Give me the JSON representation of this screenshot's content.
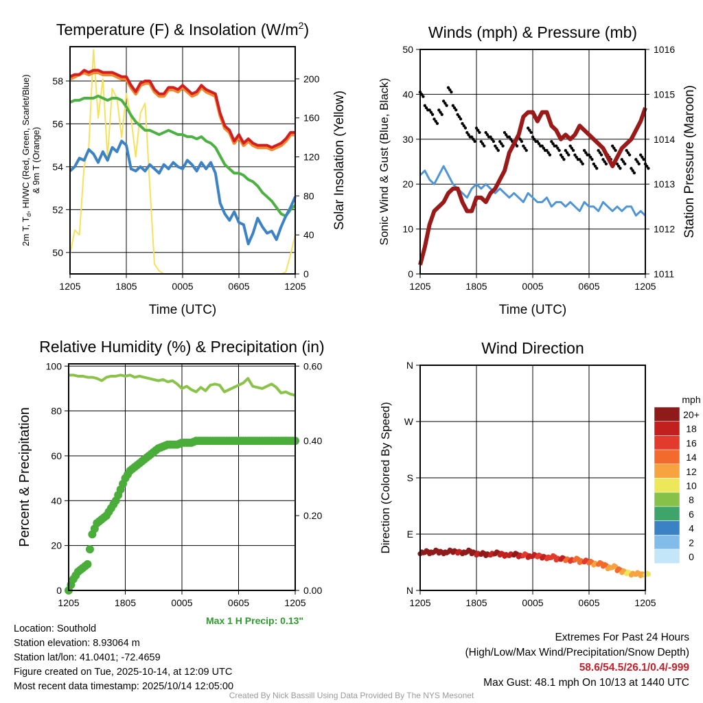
{
  "chart_data": [
    {
      "id": "temp",
      "type": "line",
      "title": "Temperature (F) & Insolation (W/m",
      "title_sup": "2",
      "title_close": ")",
      "xlabel": "Time (UTC)",
      "ylabel": "2m T, T",
      "ylabel_sub": "d",
      "ylabel_rest": ", HI/WC (Red, Green, Scarlet/Blue)",
      "ylabel2": "& 9m T (Orange)",
      "y2label": "Solar Insolation (Yellow)",
      "x_ticks": [
        "1205",
        "1805",
        "0005",
        "0605",
        "1205"
      ],
      "ylim": [
        49,
        59.6
      ],
      "y_ticks": [
        50,
        52,
        54,
        56,
        58
      ],
      "y2lim": [
        0,
        233
      ],
      "y2_ticks": [
        0,
        40,
        80,
        120,
        160,
        200
      ],
      "series": [
        {
          "name": "Solar",
          "axis": "y2",
          "color": "#f7e15a",
          "width": 2,
          "values": [
            20,
            45,
            40,
            110,
            130,
            230,
            160,
            200,
            120,
            190,
            180,
            140,
            185,
            160,
            120,
            165,
            175,
            90,
            10,
            3,
            0,
            0,
            0,
            0,
            0,
            0,
            0,
            0,
            0,
            0,
            0,
            0,
            0,
            0,
            0,
            0,
            0,
            0,
            0,
            0,
            0,
            0,
            0,
            0,
            0,
            0,
            2,
            20,
            40
          ]
        },
        {
          "name": "9m T",
          "axis": "y",
          "color": "#f08a30",
          "width": 5,
          "values": [
            58.1,
            58.2,
            58.3,
            58.4,
            58.3,
            58.4,
            58.4,
            58.3,
            58.3,
            58.3,
            58.2,
            58.1,
            58.1,
            57.7,
            57.4,
            57.8,
            57.9,
            57.9,
            57.5,
            57.3,
            57.3,
            57.6,
            57.6,
            57.5,
            57.7,
            57.5,
            57.3,
            57.4,
            57.7,
            57.5,
            57.4,
            57.3,
            56.4,
            55.8,
            55.6,
            55.1,
            55.4,
            55.0,
            55.2,
            55.0,
            54.9,
            54.9,
            54.9,
            54.8,
            54.9,
            55.0,
            55.2,
            55.5,
            55.5
          ]
        },
        {
          "name": "2m T",
          "axis": "y",
          "color": "#d11f1f",
          "width": 4,
          "values": [
            58.2,
            58.3,
            58.3,
            58.5,
            58.4,
            58.5,
            58.5,
            58.4,
            58.4,
            58.4,
            58.3,
            58.2,
            58.2,
            57.8,
            57.5,
            57.9,
            58.0,
            58.0,
            57.6,
            57.4,
            57.4,
            57.7,
            57.7,
            57.6,
            57.8,
            57.6,
            57.4,
            57.5,
            57.8,
            57.6,
            57.5,
            57.4,
            56.5,
            55.9,
            55.7,
            55.2,
            55.5,
            55.1,
            55.3,
            55.1,
            55.0,
            55.0,
            55.0,
            54.9,
            55.0,
            55.1,
            55.3,
            55.6,
            55.6
          ]
        },
        {
          "name": "Td",
          "axis": "y",
          "color": "#4db043",
          "width": 4,
          "values": [
            57.0,
            57.1,
            57.1,
            57.2,
            57.2,
            57.2,
            57.3,
            57.2,
            57.1,
            57.2,
            57.2,
            57.1,
            56.8,
            56.4,
            56.1,
            55.9,
            55.7,
            55.7,
            55.6,
            55.5,
            55.6,
            55.7,
            55.6,
            55.5,
            55.5,
            55.4,
            55.4,
            55.3,
            55.4,
            55.2,
            55.1,
            54.9,
            54.5,
            54.1,
            53.9,
            53.7,
            53.7,
            53.6,
            53.4,
            53.3,
            53.1,
            52.8,
            52.6,
            52.4,
            52.1,
            51.8,
            51.7,
            52.0,
            52.2
          ]
        },
        {
          "name": "HI/WC",
          "axis": "y",
          "color": "#3c82c4",
          "width": 4,
          "values": [
            53.8,
            54.0,
            54.4,
            54.3,
            54.8,
            54.6,
            54.2,
            54.7,
            54.3,
            54.9,
            54.7,
            55.2,
            55.0,
            53.9,
            53.8,
            54.0,
            53.8,
            54.1,
            53.9,
            53.7,
            54.1,
            53.9,
            54.2,
            54.0,
            53.9,
            54.3,
            54.1,
            53.8,
            54.2,
            53.9,
            54.2,
            53.7,
            52.3,
            51.8,
            51.5,
            51.9,
            51.4,
            51.3,
            50.4,
            50.9,
            51.6,
            51.2,
            50.9,
            51.0,
            50.6,
            51.2,
            51.7,
            52.1,
            52.6
          ]
        }
      ]
    },
    {
      "id": "wind",
      "type": "line",
      "title": "Winds (mph) & Pressure (mb)",
      "xlabel": "Time (UTC)",
      "ylabel": "Sonic Wind & Gust (Blue, Black)",
      "y2label": "Station Pressure (Maroon)",
      "x_ticks": [
        "1205",
        "1805",
        "0005",
        "0605",
        "1205"
      ],
      "ylim": [
        0,
        50
      ],
      "y_ticks": [
        0,
        10,
        20,
        30,
        40,
        50
      ],
      "y2lim": [
        1011,
        1016
      ],
      "y2_ticks": [
        1011,
        1012,
        1013,
        1014,
        1015,
        1016
      ],
      "series": [
        {
          "name": "Sonic Wind",
          "axis": "y",
          "color": "#4f95d4",
          "width": 3,
          "values": [
            22,
            23,
            21,
            20,
            22,
            24,
            22,
            20,
            19,
            18,
            17,
            19,
            20,
            19,
            20,
            19,
            18,
            19,
            18,
            17,
            18,
            17,
            16,
            18,
            17,
            16,
            16,
            17,
            15,
            16,
            16,
            15,
            16,
            15,
            14,
            16,
            15,
            15,
            14,
            16,
            15,
            14,
            15,
            14,
            15,
            15,
            13,
            14,
            13
          ]
        },
        {
          "name": "Gust",
          "axis": "y",
          "color": "#000000",
          "style": "dots",
          "values": [
            40,
            37,
            36,
            34,
            36,
            38,
            41,
            37,
            35,
            33,
            31,
            30,
            32,
            29,
            31,
            30,
            28,
            29,
            31,
            30,
            29,
            30,
            28,
            32,
            30,
            29,
            28,
            27,
            29,
            28,
            26,
            27,
            28,
            26,
            25,
            27,
            26,
            24,
            27,
            25,
            26,
            28,
            24,
            25,
            27,
            23,
            25,
            26,
            24
          ]
        },
        {
          "name": "Pressure",
          "axis": "y2",
          "color": "#9a1a1a",
          "width": 6,
          "values": [
            1011.2,
            1011.6,
            1012.1,
            1012.4,
            1012.5,
            1012.6,
            1012.8,
            1012.9,
            1012.9,
            1012.6,
            1012.4,
            1012.4,
            1012.7,
            1012.7,
            1012.6,
            1012.8,
            1012.9,
            1013.1,
            1013.3,
            1013.7,
            1013.9,
            1014.1,
            1014.5,
            1014.6,
            1014.6,
            1014.4,
            1014.6,
            1014.6,
            1014.3,
            1014.2,
            1014.0,
            1014.1,
            1014.0,
            1014.1,
            1014.3,
            1014.2,
            1014.1,
            1014.0,
            1013.9,
            1013.8,
            1013.6,
            1013.4,
            1013.6,
            1013.8,
            1013.9,
            1014.0,
            1014.2,
            1014.4,
            1014.7
          ]
        }
      ]
    },
    {
      "id": "rh",
      "type": "line",
      "title": "Relative Humidity (%) & Precipitation (in)",
      "xlabel": "",
      "ylabel": "Percent & Precipitation",
      "x_ticks": [
        "1205",
        "1805",
        "0005",
        "0605",
        "1205"
      ],
      "ylim": [
        0,
        101
      ],
      "y_ticks": [
        0,
        20,
        40,
        60,
        80,
        100
      ],
      "y2lim": [
        0,
        0.606
      ],
      "y2_ticks": [
        "0.00",
        "0.20",
        "0.40",
        "0.60"
      ],
      "series": [
        {
          "name": "RH",
          "axis": "y",
          "color": "#8bc34a",
          "width": 4,
          "values": [
            96,
            96,
            95.5,
            95.5,
            95,
            95,
            94.5,
            93.5,
            95,
            95.5,
            95.5,
            96,
            95.5,
            96,
            95,
            95.5,
            95,
            94.5,
            94,
            93.5,
            94,
            93,
            93.5,
            92,
            90,
            91,
            89.5,
            88.5,
            90.5,
            89,
            91.5,
            92,
            91.5,
            88.5,
            89.5,
            90.5,
            91.5,
            92.5,
            94.5,
            91,
            90.5,
            90,
            91,
            92,
            90.5,
            88,
            88.5,
            87.5,
            87
          ]
        },
        {
          "name": "Precip",
          "axis": "y2",
          "color": "#4aad3a",
          "style": "bigdots",
          "values": [
            0,
            0.03,
            0.05,
            0.06,
            0.07,
            0.15,
            0.18,
            0.19,
            0.2,
            0.22,
            0.24,
            0.27,
            0.3,
            0.32,
            0.33,
            0.34,
            0.35,
            0.36,
            0.37,
            0.38,
            0.385,
            0.39,
            0.39,
            0.39,
            0.395,
            0.395,
            0.395,
            0.4,
            0.4,
            0.4,
            0.4,
            0.4,
            0.4,
            0.4,
            0.4,
            0.4,
            0.4,
            0.4,
            0.4,
            0.4,
            0.4,
            0.4,
            0.4,
            0.4,
            0.4,
            0.4,
            0.4,
            0.4,
            0.4
          ]
        }
      ],
      "annotation": "Max 1 H Precip: 0.13\""
    },
    {
      "id": "dir",
      "type": "scatter",
      "title": "Wind Direction",
      "ylabel": "Direction (Colored By Speed)",
      "x_ticks": [
        "1205",
        "1805",
        "0005",
        "0605",
        "1205"
      ],
      "ylim": [
        0,
        360
      ],
      "y_ticks": [
        "N",
        "E",
        "S",
        "W",
        "N"
      ],
      "directions": [
        60,
        62,
        60,
        63,
        61,
        60,
        63,
        62,
        61,
        60,
        63,
        60,
        58,
        59,
        57,
        58,
        60,
        58,
        56,
        57,
        58,
        55,
        57,
        54,
        56,
        55,
        53,
        52,
        54,
        50,
        51,
        49,
        48,
        50,
        46,
        47,
        45,
        42,
        43,
        40,
        36,
        38,
        33,
        30,
        28,
        26,
        27,
        25,
        26
      ],
      "speeds": [
        21,
        20,
        21,
        22,
        20,
        21,
        20,
        21,
        19,
        20,
        21,
        20,
        19,
        20,
        20,
        18,
        20,
        19,
        18,
        19,
        20,
        18,
        17,
        18,
        19,
        17,
        18,
        16,
        17,
        16,
        18,
        15,
        16,
        14,
        15,
        16,
        14,
        13,
        15,
        14,
        12,
        13,
        14,
        12,
        11,
        13,
        12,
        12,
        11
      ],
      "colorbar": {
        "title": "mph",
        "labels": [
          "20+",
          "18",
          "16",
          "14",
          "12",
          "10",
          "8",
          "6",
          "4",
          "2",
          "0"
        ],
        "colors": [
          "#8e1a1a",
          "#c1201f",
          "#e23a2c",
          "#f26a2c",
          "#f7a33f",
          "#ede85a",
          "#86c24a",
          "#3ea46a",
          "#3a82c4",
          "#82bce8",
          "#c3e7f8"
        ]
      }
    }
  ],
  "info": {
    "location": "Location: Southold",
    "elevation": "Station elevation: 8.93064 m",
    "latlon": "Station lat/lon: 41.0401; -72.4659",
    "created": "Figure created on Tue, 2025-10-14, at 12:09 UTC",
    "recent": "Most recent data timestamp: 2025/10/14 12:05:00"
  },
  "extremes": {
    "title": "Extremes For Past 24 Hours",
    "subtitle": "(High/Low/Max Wind/Precipitation/Snow Depth)",
    "values": "58.6/54.5/26.1/0.4/-999",
    "gust": "Max Gust: 48.1 mph On 10/13 at 1440 UTC"
  },
  "credit": "Created By Nick Bassill Using Data Provided By The NYS Mesonet"
}
